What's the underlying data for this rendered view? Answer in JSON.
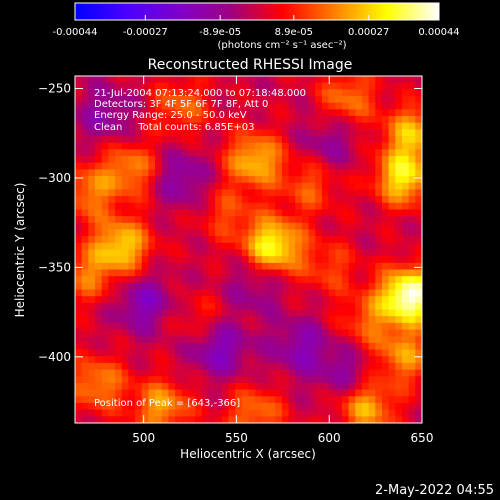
{
  "colorbar": {
    "tick_labels": [
      "-0.00044",
      "-0.00027",
      "-8.9e-05",
      "8.9e-05",
      "0.00027",
      "0.00044"
    ],
    "tick_values": [
      -0.00044,
      -0.00027,
      -8.9e-05,
      8.9e-05,
      0.00027,
      0.00044
    ],
    "range": [
      -0.00044,
      0.00044
    ],
    "unit_label": "(photons cm⁻² s⁻¹ asec⁻²)",
    "colors": [
      "#0000ff",
      "#4b00ff",
      "#7f00cc",
      "#a00080",
      "#ff0000",
      "#ff8000",
      "#ffff00",
      "#ffffff"
    ]
  },
  "chart_data": {
    "type": "heatmap",
    "title": "Reconstructed RHESSI Image",
    "xlabel": "Heliocentric X (arcsec)",
    "ylabel": "Heliocentric Y (arcsec)",
    "xlim": [
      463,
      650
    ],
    "ylim": [
      -437,
      -243
    ],
    "xticks": [
      500,
      550,
      600,
      650
    ],
    "yticks": [
      -400,
      -350,
      -300,
      -250
    ],
    "info_lines": [
      "21-Jul-2004 07:13:24.000 to 07:18:48.000",
      "Detectors: 3F 4F 5F 6F 7F 8F, Att 0",
      "Energy Range: 25.0 - 50.0 keV",
      "Clean     Total counts: 6.85E+03"
    ],
    "peak_label": "Position of Peak = [643,-366]",
    "peak": [
      643,
      -366
    ],
    "sources": [
      {
        "x": 643,
        "y": -366,
        "v": 0.00044
      },
      {
        "x": 570,
        "y": -338,
        "v": 0.00034
      },
      {
        "x": 560,
        "y": -290,
        "v": 0.00026
      },
      {
        "x": 640,
        "y": -300,
        "v": 0.0003
      },
      {
        "x": 645,
        "y": -275,
        "v": 0.00024
      },
      {
        "x": 488,
        "y": -338,
        "v": 0.00028
      },
      {
        "x": 493,
        "y": -295,
        "v": 0.0002
      },
      {
        "x": 470,
        "y": -308,
        "v": 0.00018
      },
      {
        "x": 520,
        "y": -260,
        "v": 0.00016
      },
      {
        "x": 610,
        "y": -255,
        "v": 0.00018
      },
      {
        "x": 590,
        "y": -305,
        "v": 0.00014
      },
      {
        "x": 470,
        "y": -355,
        "v": 0.00016
      },
      {
        "x": 475,
        "y": -415,
        "v": 0.0002
      },
      {
        "x": 510,
        "y": -428,
        "v": 0.00022
      },
      {
        "x": 560,
        "y": -432,
        "v": 0.00018
      },
      {
        "x": 620,
        "y": -428,
        "v": 0.00024
      },
      {
        "x": 640,
        "y": -400,
        "v": 0.0002
      },
      {
        "x": 600,
        "y": -350,
        "v": 0.00012
      },
      {
        "x": 530,
        "y": -380,
        "v": 0.0001
      },
      {
        "x": 545,
        "y": -320,
        "v": 0.00012
      },
      {
        "x": 620,
        "y": -380,
        "v": 0.00014
      },
      {
        "x": 500,
        "y": -370,
        "v": -0.00016
      },
      {
        "x": 540,
        "y": -395,
        "v": -0.00018
      },
      {
        "x": 520,
        "y": -300,
        "v": -0.00014
      },
      {
        "x": 585,
        "y": -395,
        "v": -0.00014
      },
      {
        "x": 600,
        "y": -280,
        "v": -0.0001
      },
      {
        "x": 480,
        "y": -265,
        "v": -0.00012
      },
      {
        "x": 560,
        "y": -360,
        "v": -0.0001
      },
      {
        "x": 610,
        "y": -410,
        "v": -0.00012
      }
    ]
  },
  "footer": {
    "date": "2-May-2022 04:55"
  }
}
